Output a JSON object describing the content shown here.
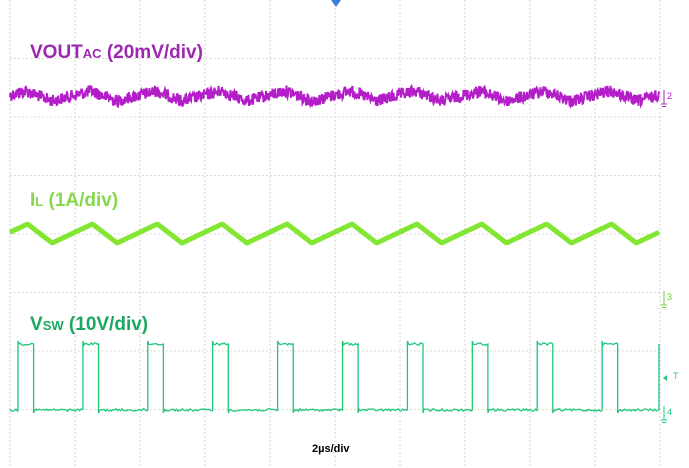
{
  "chart_data": {
    "type": "line",
    "time_scale": "2µs/div",
    "grid": true,
    "series": [
      {
        "name_main": "VOUT",
        "name_sub": "AC",
        "scale": "(20mV/div)",
        "color": "#b41ec8",
        "channel": "2",
        "waveform": "triangular ripple with noise",
        "cycles": 10
      },
      {
        "name_main": "I",
        "name_sub": "L",
        "scale": "(1A/div)",
        "color": "#82e632",
        "channel": "3",
        "waveform": "triangular",
        "cycles": 10
      },
      {
        "name_main": "V",
        "name_sub": "SW",
        "scale": "(10V/div)",
        "color": "#1ec878",
        "channel": "4",
        "waveform": "square pulse",
        "cycles": 10
      }
    ],
    "trigger_marker": "T"
  }
}
